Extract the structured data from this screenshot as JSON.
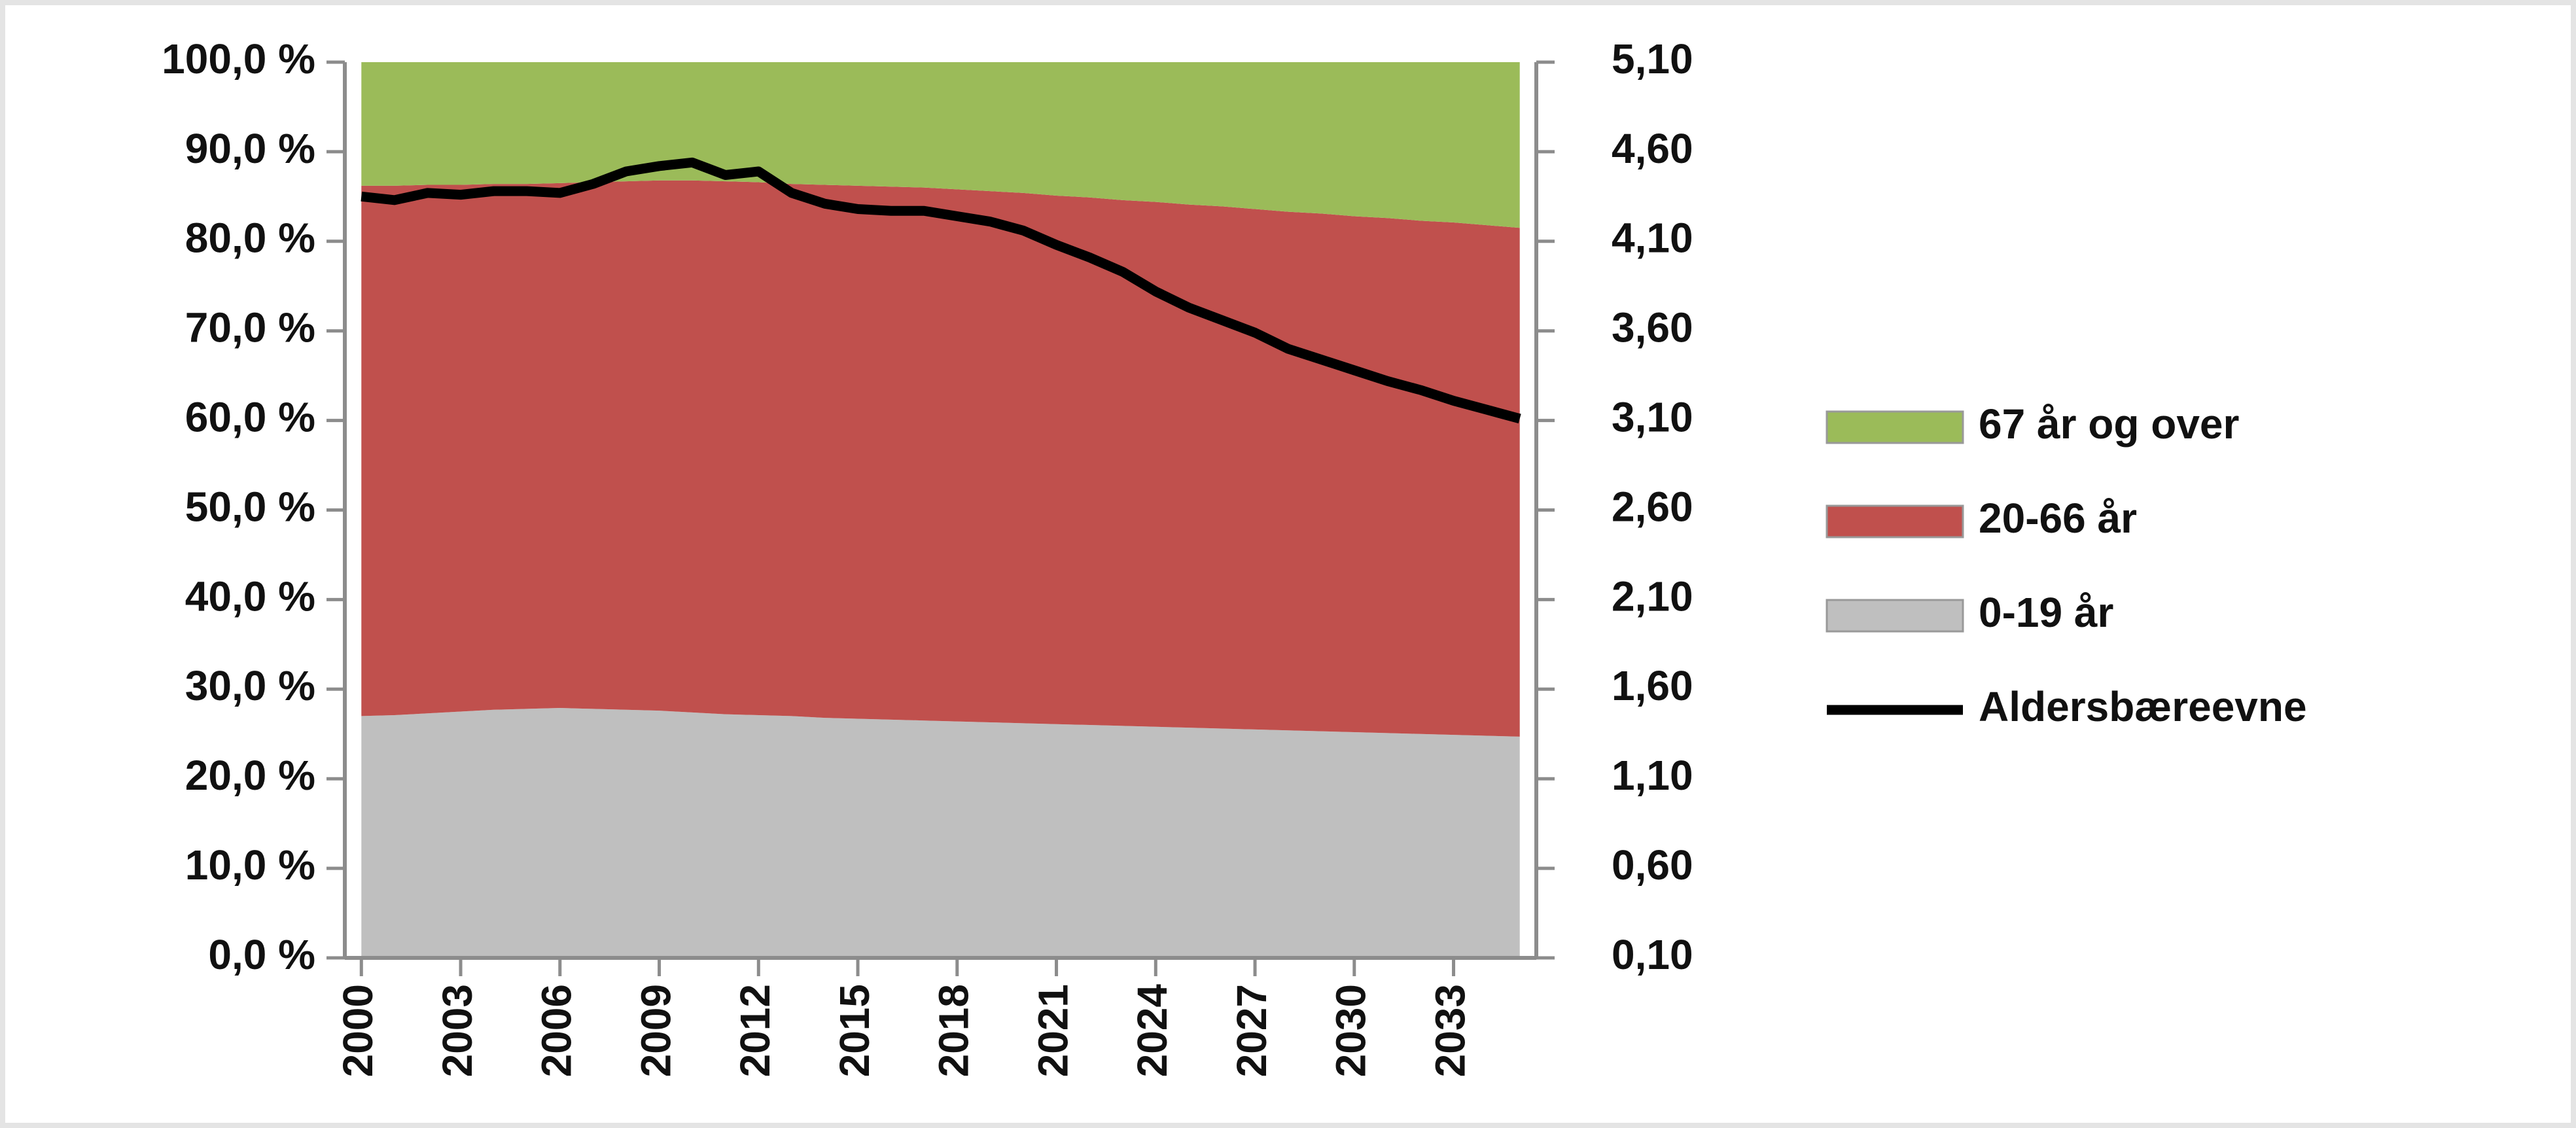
{
  "chart_data": {
    "type": "stacked-area-line",
    "x": [
      2000,
      2001,
      2002,
      2003,
      2004,
      2005,
      2006,
      2007,
      2008,
      2009,
      2010,
      2011,
      2012,
      2013,
      2014,
      2015,
      2016,
      2017,
      2018,
      2019,
      2020,
      2021,
      2022,
      2023,
      2024,
      2025,
      2026,
      2027,
      2028,
      2029,
      2030,
      2031,
      2032,
      2033,
      2034,
      2035
    ],
    "xlim": [
      1999.5,
      2035.5
    ],
    "xticks": [
      2000,
      2003,
      2006,
      2009,
      2012,
      2015,
      2018,
      2021,
      2024,
      2027,
      2030,
      2033
    ],
    "ylim": [
      0,
      100
    ],
    "yticks": [
      {
        "value": 0,
        "label": "0,0 %"
      },
      {
        "value": 10,
        "label": "10,0 %"
      },
      {
        "value": 20,
        "label": "20,0 %"
      },
      {
        "value": 30,
        "label": "30,0 %"
      },
      {
        "value": 40,
        "label": "40,0 %"
      },
      {
        "value": 50,
        "label": "50,0 %"
      },
      {
        "value": 60,
        "label": "60,0 %"
      },
      {
        "value": 70,
        "label": "70,0 %"
      },
      {
        "value": 80,
        "label": "80,0 %"
      },
      {
        "value": 90,
        "label": "90,0 %"
      },
      {
        "value": 100,
        "label": "100,0 %"
      }
    ],
    "y2lim": [
      0.1,
      5.1
    ],
    "y2ticks": [
      {
        "value": 0.1,
        "label": "0,10"
      },
      {
        "value": 0.6,
        "label": "0,60"
      },
      {
        "value": 1.1,
        "label": "1,10"
      },
      {
        "value": 1.6,
        "label": "1,60"
      },
      {
        "value": 2.1,
        "label": "2,10"
      },
      {
        "value": 2.6,
        "label": "2,60"
      },
      {
        "value": 3.1,
        "label": "3,10"
      },
      {
        "value": 3.6,
        "label": "3,60"
      },
      {
        "value": 4.1,
        "label": "4,10"
      },
      {
        "value": 4.6,
        "label": "4,60"
      },
      {
        "value": 5.1,
        "label": "5,10"
      }
    ],
    "series": [
      {
        "name": "0-19 år",
        "color": "#bfbfbf",
        "kind": "area",
        "values": [
          27.0,
          27.1,
          27.3,
          27.5,
          27.7,
          27.8,
          27.9,
          27.8,
          27.7,
          27.6,
          27.4,
          27.2,
          27.1,
          27.0,
          26.8,
          26.7,
          26.6,
          26.5,
          26.4,
          26.3,
          26.2,
          26.1,
          26.0,
          25.9,
          25.8,
          25.7,
          25.6,
          25.5,
          25.4,
          25.3,
          25.2,
          25.1,
          25.0,
          24.9,
          24.8,
          24.7
        ]
      },
      {
        "name": "20-66 år",
        "color": "#c0504d",
        "kind": "area",
        "values": [
          59.2,
          59.1,
          59.0,
          58.8,
          58.7,
          58.6,
          58.6,
          58.8,
          59.0,
          59.2,
          59.4,
          59.5,
          59.5,
          59.4,
          59.5,
          59.5,
          59.5,
          59.5,
          59.4,
          59.3,
          59.2,
          59.0,
          58.9,
          58.7,
          58.6,
          58.4,
          58.3,
          58.1,
          57.9,
          57.8,
          57.6,
          57.5,
          57.3,
          57.2,
          57.0,
          56.8
        ]
      },
      {
        "name": "67 år og over",
        "color": "#9bbb59",
        "kind": "area",
        "values": [
          13.8,
          13.8,
          13.7,
          13.7,
          13.6,
          13.6,
          13.5,
          13.4,
          13.3,
          13.2,
          13.2,
          13.3,
          13.4,
          13.6,
          13.7,
          13.8,
          13.9,
          14.0,
          14.2,
          14.4,
          14.6,
          14.9,
          15.1,
          15.4,
          15.6,
          15.9,
          16.1,
          16.4,
          16.7,
          16.9,
          17.2,
          17.4,
          17.7,
          17.9,
          18.2,
          18.5
        ]
      },
      {
        "name": "Aldersbæreevne",
        "color": "#000000",
        "kind": "line",
        "axis": "y2",
        "values": [
          4.35,
          4.33,
          4.37,
          4.36,
          4.38,
          4.38,
          4.37,
          4.42,
          4.49,
          4.52,
          4.54,
          4.47,
          4.49,
          4.37,
          4.31,
          4.28,
          4.27,
          4.27,
          4.24,
          4.21,
          4.16,
          4.08,
          4.01,
          3.93,
          3.82,
          3.73,
          3.66,
          3.59,
          3.5,
          3.44,
          3.38,
          3.32,
          3.27,
          3.21,
          3.16,
          3.11
        ]
      }
    ]
  }
}
